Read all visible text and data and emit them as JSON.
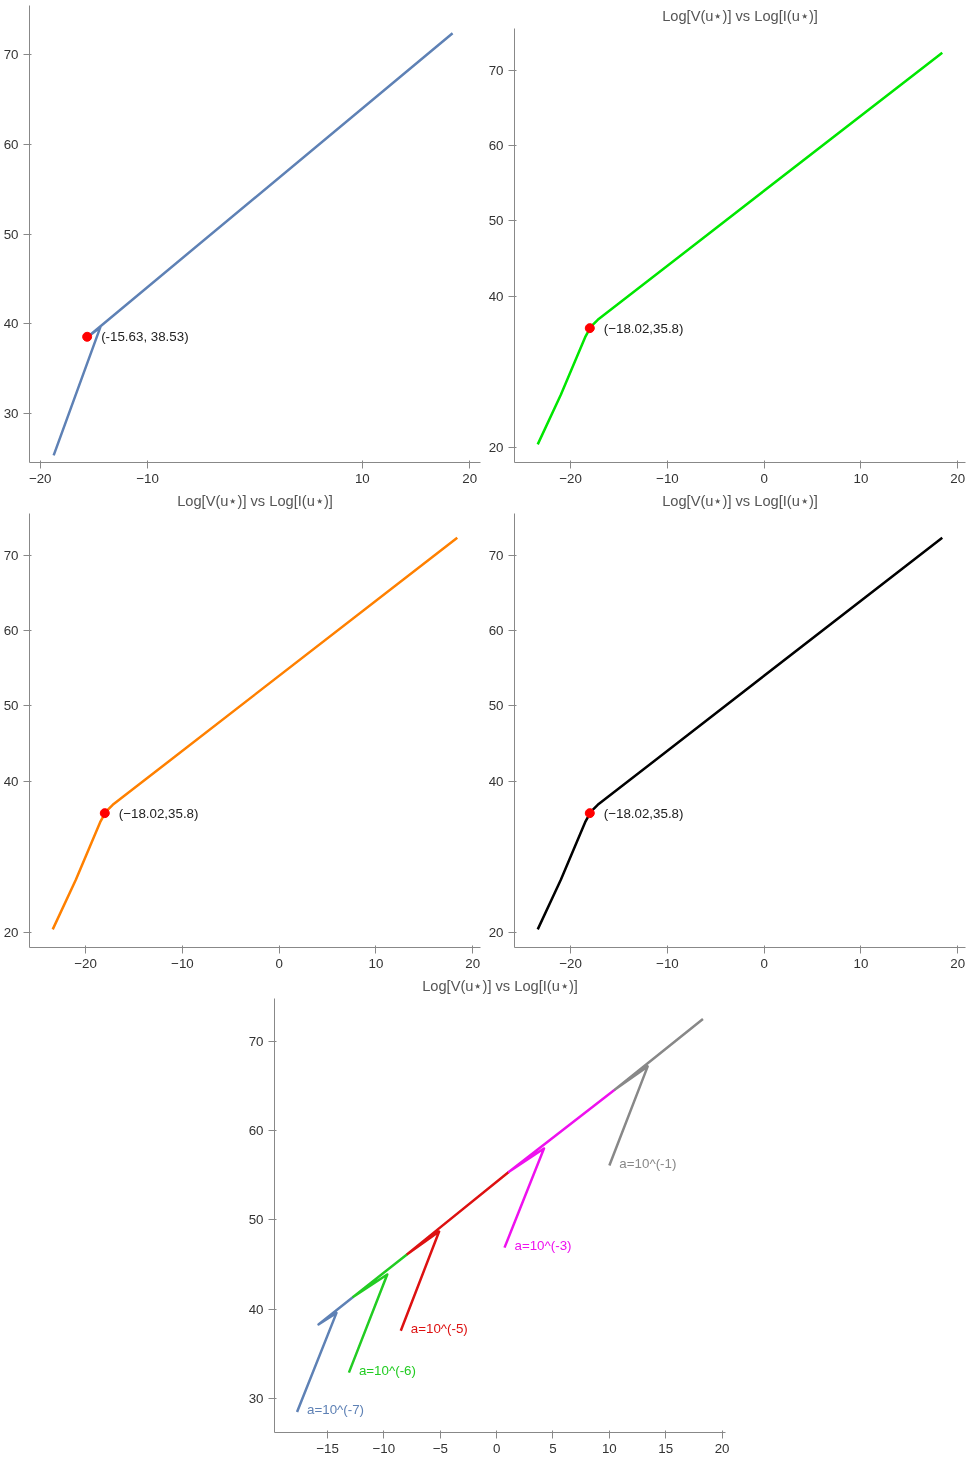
{
  "chart_data": [
    {
      "type": "line",
      "xlim": [
        -21,
        21
      ],
      "ylim": [
        24.5,
        75.5
      ],
      "xticks": [
        -20,
        -10,
        10,
        20
      ],
      "yticks": [
        30,
        40,
        50,
        60,
        70
      ],
      "series": [
        {
          "color": "#5e81b5",
          "x": [
            -18.75,
            -14.4,
            -15.7,
            18.4
          ],
          "values": [
            25.3,
            39.6,
            38.4,
            72.4
          ]
        },
        {
          "type": "scatter",
          "color": "#ff0000",
          "x": [
            -15.63
          ],
          "values": [
            38.53
          ],
          "value_labels": [
            "(-15.63, 38.53)"
          ]
        }
      ]
    },
    {
      "type": "line",
      "title": "Log[V(u⋆)] vs Log[I(u⋆)]",
      "xlim": [
        -25.8,
        20.8
      ],
      "ylim": [
        18,
        75.5
      ],
      "xticks": [
        -20,
        -10,
        0,
        10,
        20
      ],
      "yticks": [
        20,
        40,
        50,
        60,
        70
      ],
      "series": [
        {
          "color": "#00e600",
          "x": [
            -23.4,
            -21,
            -18.5,
            -17.9,
            -17.2,
            18.4
          ],
          "values": [
            20.4,
            27,
            34.6,
            36,
            36.9,
            72.3
          ]
        },
        {
          "type": "scatter",
          "color": "#ff0000",
          "x": [
            -18.02
          ],
          "values": [
            35.8
          ],
          "value_labels": [
            "(−18.02,35.8)"
          ]
        }
      ]
    },
    {
      "type": "line",
      "title": "Log[V(u⋆)] vs Log[I(u⋆)]",
      "xlim": [
        -25.8,
        20.8
      ],
      "ylim": [
        18,
        75.5
      ],
      "xticks": [
        -20,
        -10,
        0,
        10,
        20
      ],
      "yticks": [
        20,
        40,
        50,
        60,
        70
      ],
      "series": [
        {
          "color": "#ff8000",
          "x": [
            -23.4,
            -21,
            -18.5,
            -17.9,
            -17.2,
            18.4
          ],
          "values": [
            20.4,
            27,
            34.6,
            36,
            36.9,
            72.3
          ]
        },
        {
          "type": "scatter",
          "color": "#ff0000",
          "x": [
            -18.02
          ],
          "values": [
            35.8
          ],
          "value_labels": [
            "(−18.02,35.8)"
          ]
        }
      ]
    },
    {
      "type": "line",
      "title": "Log[V(u⋆)] vs Log[I(u⋆)]",
      "xlim": [
        -25.8,
        20.8
      ],
      "ylim": [
        18,
        75.5
      ],
      "xticks": [
        -20,
        -10,
        0,
        10,
        20
      ],
      "yticks": [
        20,
        40,
        50,
        60,
        70
      ],
      "series": [
        {
          "color": "#000000",
          "x": [
            -23.4,
            -21,
            -18.5,
            -17.9,
            -17.2,
            18.4
          ],
          "values": [
            20.4,
            27,
            34.6,
            36,
            36.9,
            72.3
          ]
        },
        {
          "type": "scatter",
          "color": "#ff0000",
          "x": [
            -18.02
          ],
          "values": [
            35.8
          ],
          "value_labels": [
            "(−18.02,35.8)"
          ]
        }
      ]
    },
    {
      "type": "line",
      "title": "Log[V(u⋆)] vs Log[I(u⋆)]",
      "xlim": [
        -19.7,
        20.3
      ],
      "ylim": [
        26.2,
        74.8
      ],
      "xticks": [
        -15,
        -10,
        -5,
        0,
        5,
        10,
        15,
        20
      ],
      "yticks": [
        30,
        40,
        50,
        60,
        70
      ],
      "series": [
        {
          "name": "a=10^(-7)",
          "color": "#5e81b5",
          "x": [
            -17.7,
            -14.2,
            -15.8,
            -12.7
          ],
          "values": [
            28.5,
            39.6,
            38.3,
            41.4
          ]
        },
        {
          "name": "a=10^(-6)",
          "color": "#22cc22",
          "x": [
            -13.1,
            -9.7,
            -12.7,
            -7.9
          ],
          "values": [
            32.9,
            43.9,
            41.4,
            46.2
          ]
        },
        {
          "name": "a=10^(-5)",
          "color": "#dd1111",
          "x": [
            -8.5,
            -5.1,
            -7.9,
            1.1
          ],
          "values": [
            37.6,
            48.7,
            46.2,
            55.4
          ]
        },
        {
          "name": "a=10^(-3)",
          "color": "#ee11ee",
          "x": [
            0.7,
            4.2,
            1.1,
            10.5
          ],
          "values": [
            46.9,
            58.0,
            55.4,
            64.6
          ]
        },
        {
          "name": "a=10^(-1)",
          "color": "#888888",
          "x": [
            10.0,
            13.4,
            10.5,
            18.3
          ],
          "values": [
            56.1,
            67.2,
            64.6,
            72.5
          ]
        }
      ]
    }
  ]
}
